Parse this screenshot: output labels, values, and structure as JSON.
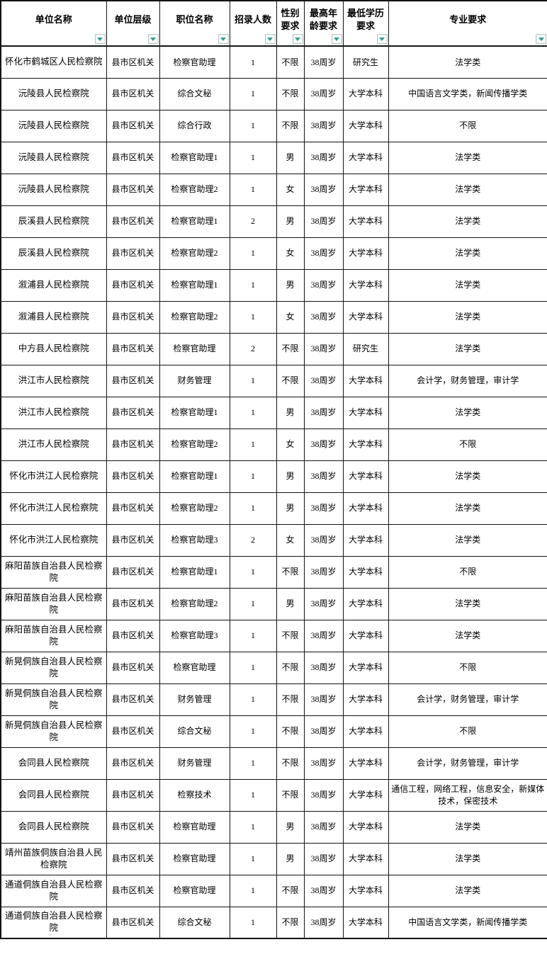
{
  "colors": {
    "grid_border": "#141414",
    "cell_background": "#ffffff",
    "text": "#000000",
    "filter_arrow": "#2f9e8e",
    "filter_button_border": "#b9c6c2"
  },
  "icons": {
    "filter_dropdown": "filter-dropdown-icon"
  },
  "table": {
    "headers": [
      "单位名称",
      "单位层级",
      "职位名称",
      "招录人数",
      "性别要求",
      "最高年龄要求",
      "最低学历要求",
      "专业要求"
    ],
    "rows": [
      [
        "怀化市鹤城区人民检察院",
        "县市区机关",
        "检察官助理",
        "1",
        "不限",
        "38周岁",
        "研究生",
        "法学类"
      ],
      [
        "沅陵县人民检察院",
        "县市区机关",
        "综合文秘",
        "1",
        "不限",
        "38周岁",
        "大学本科",
        "中国语言文学类，新闻传播学类"
      ],
      [
        "沅陵县人民检察院",
        "县市区机关",
        "综合行政",
        "1",
        "不限",
        "38周岁",
        "大学本科",
        "不限"
      ],
      [
        "沅陵县人民检察院",
        "县市区机关",
        "检察官助理1",
        "1",
        "男",
        "38周岁",
        "大学本科",
        "法学类"
      ],
      [
        "沅陵县人民检察院",
        "县市区机关",
        "检察官助理2",
        "1",
        "女",
        "38周岁",
        "大学本科",
        "法学类"
      ],
      [
        "辰溪县人民检察院",
        "县市区机关",
        "检察官助理1",
        "2",
        "男",
        "38周岁",
        "大学本科",
        "法学类"
      ],
      [
        "辰溪县人民检察院",
        "县市区机关",
        "检察官助理2",
        "1",
        "女",
        "38周岁",
        "大学本科",
        "法学类"
      ],
      [
        "溆浦县人民检察院",
        "县市区机关",
        "检察官助理1",
        "1",
        "男",
        "38周岁",
        "大学本科",
        "法学类"
      ],
      [
        "溆浦县人民检察院",
        "县市区机关",
        "检察官助理2",
        "1",
        "女",
        "38周岁",
        "大学本科",
        "法学类"
      ],
      [
        "中方县人民检察院",
        "县市区机关",
        "检察官助理",
        "2",
        "不限",
        "38周岁",
        "研究生",
        "法学类"
      ],
      [
        "洪江市人民检察院",
        "县市区机关",
        "财务管理",
        "1",
        "不限",
        "38周岁",
        "大学本科",
        "会计学，财务管理，审计学"
      ],
      [
        "洪江市人民检察院",
        "县市区机关",
        "检察官助理1",
        "1",
        "男",
        "38周岁",
        "大学本科",
        "法学类"
      ],
      [
        "洪江市人民检察院",
        "县市区机关",
        "检察官助理2",
        "1",
        "女",
        "38周岁",
        "大学本科",
        "不限"
      ],
      [
        "怀化市洪江人民检察院",
        "县市区机关",
        "检察官助理1",
        "1",
        "男",
        "38周岁",
        "大学本科",
        "法学类"
      ],
      [
        "怀化市洪江人民检察院",
        "县市区机关",
        "检察官助理2",
        "1",
        "男",
        "38周岁",
        "大学本科",
        "法学类"
      ],
      [
        "怀化市洪江人民检察院",
        "县市区机关",
        "检察官助理3",
        "2",
        "女",
        "38周岁",
        "大学本科",
        "法学类"
      ],
      [
        "麻阳苗族自治县人民检察院",
        "县市区机关",
        "检察官助理1",
        "1",
        "不限",
        "38周岁",
        "大学本科",
        "不限"
      ],
      [
        "麻阳苗族自治县人民检察院",
        "县市区机关",
        "检察官助理2",
        "1",
        "男",
        "38周岁",
        "大学本科",
        "法学类"
      ],
      [
        "麻阳苗族自治县人民检察院",
        "县市区机关",
        "检察官助理3",
        "1",
        "不限",
        "38周岁",
        "大学本科",
        "法学类"
      ],
      [
        "新晃侗族自治县人民检察院",
        "县市区机关",
        "检察官助理",
        "1",
        "不限",
        "38周岁",
        "大学本科",
        "不限"
      ],
      [
        "新晃侗族自治县人民检察院",
        "县市区机关",
        "财务管理",
        "1",
        "不限",
        "38周岁",
        "大学本科",
        "会计学，财务管理，审计学"
      ],
      [
        "新晃侗族自治县人民检察院",
        "县市区机关",
        "综合文秘",
        "1",
        "不限",
        "38周岁",
        "大学本科",
        "不限"
      ],
      [
        "会同县人民检察院",
        "县市区机关",
        "财务管理",
        "1",
        "不限",
        "38周岁",
        "大学本科",
        "会计学，财务管理，审计学"
      ],
      [
        "会同县人民检察院",
        "县市区机关",
        "检察技术",
        "1",
        "不限",
        "38周岁",
        "大学本科",
        "通信工程，网络工程，信息安全，新媒体技术，保密技术"
      ],
      [
        "会同县人民检察院",
        "县市区机关",
        "检察官助理",
        "1",
        "男",
        "38周岁",
        "大学本科",
        "法学类"
      ],
      [
        "靖州苗族侗族自治县人民检察院",
        "县市区机关",
        "检察官助理",
        "1",
        "男",
        "38周岁",
        "大学本科",
        "法学类"
      ],
      [
        "通道侗族自治县人民检察院",
        "县市区机关",
        "检察官助理",
        "1",
        "不限",
        "38周岁",
        "大学本科",
        "法学类"
      ],
      [
        "通道侗族自治县人民检察院",
        "县市区机关",
        "综合文秘",
        "1",
        "不限",
        "38周岁",
        "大学本科",
        "中国语言文学类，新闻传播学类"
      ]
    ]
  }
}
